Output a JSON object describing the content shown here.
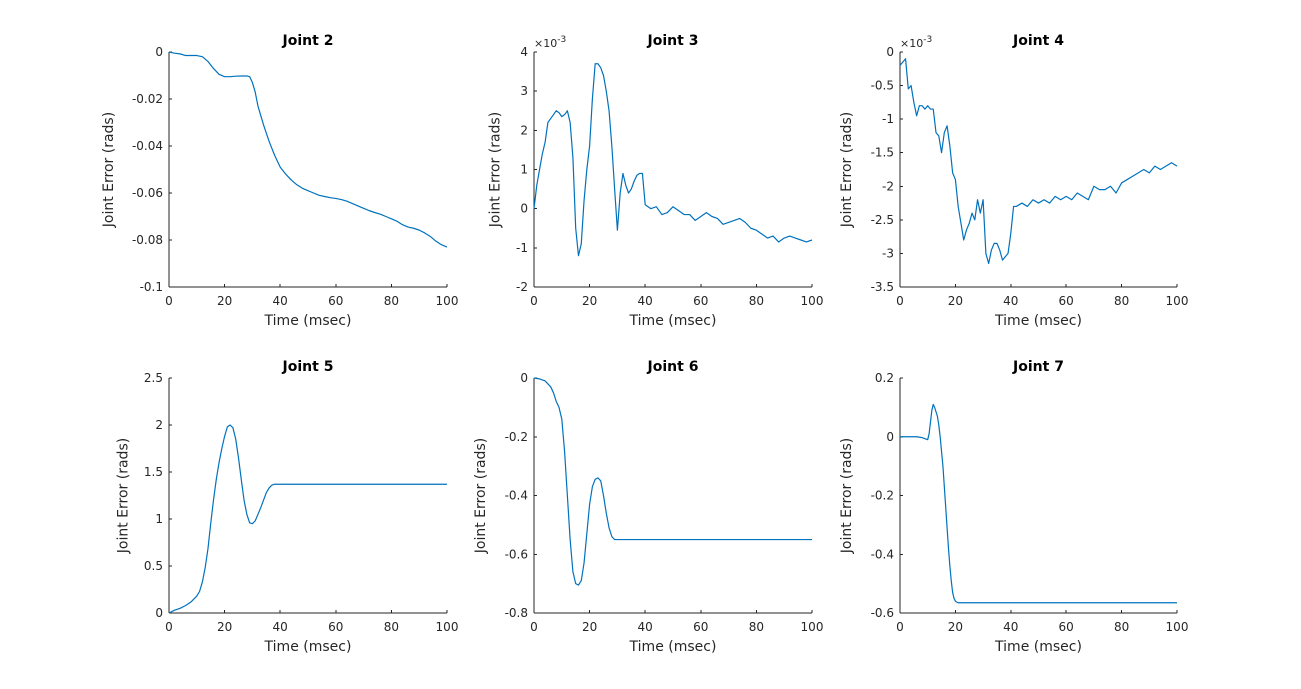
{
  "figure": {
    "line_color": "#0072BD",
    "background": "#ffffff"
  },
  "chart_data": [
    {
      "type": "line",
      "title": "Joint 2",
      "xlabel": "Time (msec)",
      "ylabel": "Joint Error (rads)",
      "xlim": [
        0,
        100
      ],
      "ylim": [
        -0.1,
        0
      ],
      "xticks": [
        0,
        20,
        40,
        60,
        80,
        100
      ],
      "xtick_labels": [
        "0",
        "20",
        "40",
        "60",
        "80",
        "100"
      ],
      "yticks": [
        -0.1,
        -0.08,
        -0.06,
        -0.04,
        -0.02,
        0
      ],
      "ytick_labels": [
        "-0.1",
        "-0.08",
        "-0.06",
        "-0.04",
        "-0.02",
        "0"
      ],
      "exponent_label": "",
      "series": [
        {
          "name": "Joint 2",
          "x": [
            0,
            2,
            4,
            6,
            8,
            10,
            12,
            14,
            16,
            18,
            20,
            22,
            24,
            26,
            28,
            29,
            30,
            31,
            32,
            34,
            36,
            38,
            40,
            42,
            44,
            46,
            48,
            50,
            52,
            54,
            56,
            58,
            60,
            62,
            64,
            66,
            68,
            70,
            72,
            74,
            76,
            78,
            80,
            82,
            84,
            86,
            88,
            90,
            92,
            94,
            96,
            98,
            100
          ],
          "y": [
            0,
            -0.0005,
            -0.0008,
            -0.0015,
            -0.0015,
            -0.0015,
            -0.002,
            -0.004,
            -0.007,
            -0.0095,
            -0.0105,
            -0.0105,
            -0.0103,
            -0.0102,
            -0.0102,
            -0.0105,
            -0.013,
            -0.017,
            -0.023,
            -0.031,
            -0.038,
            -0.044,
            -0.049,
            -0.052,
            -0.0545,
            -0.0565,
            -0.058,
            -0.059,
            -0.06,
            -0.061,
            -0.0615,
            -0.062,
            -0.0623,
            -0.0628,
            -0.0635,
            -0.0645,
            -0.0655,
            -0.0665,
            -0.0675,
            -0.0683,
            -0.069,
            -0.07,
            -0.071,
            -0.072,
            -0.0735,
            -0.0745,
            -0.075,
            -0.0758,
            -0.077,
            -0.0785,
            -0.0805,
            -0.082,
            -0.083
          ]
        }
      ]
    },
    {
      "type": "line",
      "title": "Joint 3",
      "xlabel": "Time (msec)",
      "ylabel": "Joint Error (rads)",
      "xlim": [
        0,
        100
      ],
      "ylim": [
        -2,
        4
      ],
      "xticks": [
        0,
        20,
        40,
        60,
        80,
        100
      ],
      "xtick_labels": [
        "0",
        "20",
        "40",
        "60",
        "80",
        "100"
      ],
      "yticks": [
        -2,
        -1,
        0,
        1,
        2,
        3,
        4
      ],
      "ytick_labels": [
        "-2",
        "-1",
        "0",
        "1",
        "2",
        "3",
        "4"
      ],
      "exponent_label": "×10",
      "exponent_power": "-3",
      "series": [
        {
          "name": "Joint 3",
          "x": [
            0,
            1,
            2,
            3,
            4,
            5,
            6,
            7,
            8,
            9,
            10,
            11,
            12,
            13,
            14,
            15,
            16,
            17,
            18,
            19,
            20,
            21,
            22,
            23,
            24,
            25,
            26,
            27,
            28,
            29,
            30,
            31,
            32,
            33,
            34,
            35,
            36,
            37,
            38,
            39,
            40,
            42,
            44,
            46,
            48,
            50,
            52,
            54,
            56,
            58,
            60,
            62,
            64,
            66,
            68,
            70,
            72,
            74,
            76,
            78,
            80,
            82,
            84,
            86,
            88,
            90,
            92,
            94,
            96,
            98,
            100
          ],
          "y": [
            0,
            0.6,
            1.0,
            1.4,
            1.7,
            2.2,
            2.3,
            2.4,
            2.5,
            2.45,
            2.35,
            2.4,
            2.5,
            2.2,
            1.3,
            -0.5,
            -1.2,
            -0.9,
            0.2,
            1.0,
            1.6,
            2.8,
            3.7,
            3.7,
            3.6,
            3.4,
            3.0,
            2.5,
            1.6,
            0.5,
            -0.55,
            0.4,
            0.9,
            0.6,
            0.4,
            0.5,
            0.7,
            0.85,
            0.9,
            0.9,
            0.1,
            0.0,
            0.05,
            -0.15,
            -0.1,
            0.05,
            -0.05,
            -0.15,
            -0.15,
            -0.3,
            -0.2,
            -0.1,
            -0.2,
            -0.25,
            -0.4,
            -0.35,
            -0.3,
            -0.25,
            -0.35,
            -0.5,
            -0.55,
            -0.65,
            -0.75,
            -0.7,
            -0.85,
            -0.75,
            -0.7,
            -0.75,
            -0.8,
            -0.85,
            -0.8
          ]
        }
      ]
    },
    {
      "type": "line",
      "title": "Joint 4",
      "xlabel": "Time (msec)",
      "ylabel": "Joint Error (rads)",
      "xlim": [
        0,
        100
      ],
      "ylim": [
        -3.5,
        0
      ],
      "xticks": [
        0,
        20,
        40,
        60,
        80,
        100
      ],
      "xtick_labels": [
        "0",
        "20",
        "40",
        "60",
        "80",
        "100"
      ],
      "yticks": [
        -3.5,
        -3,
        -2.5,
        -2,
        -1.5,
        -1,
        -0.5,
        0
      ],
      "ytick_labels": [
        "-3.5",
        "-3",
        "-2.5",
        "-2",
        "-1.5",
        "-1",
        "-0.5",
        "0"
      ],
      "exponent_label": "×10",
      "exponent_power": "-3",
      "series": [
        {
          "name": "Joint 4",
          "x": [
            0,
            1,
            2,
            3,
            4,
            5,
            6,
            7,
            8,
            9,
            10,
            11,
            12,
            13,
            14,
            15,
            16,
            17,
            18,
            19,
            20,
            21,
            22,
            23,
            24,
            25,
            26,
            27,
            28,
            29,
            30,
            31,
            32,
            33,
            34,
            35,
            36,
            37,
            38,
            39,
            40,
            41,
            42,
            44,
            46,
            48,
            50,
            52,
            54,
            56,
            58,
            60,
            62,
            64,
            66,
            68,
            70,
            72,
            74,
            76,
            78,
            80,
            82,
            84,
            86,
            88,
            90,
            92,
            94,
            96,
            98,
            100
          ],
          "y": [
            -0.2,
            -0.15,
            -0.1,
            -0.55,
            -0.5,
            -0.75,
            -0.95,
            -0.8,
            -0.8,
            -0.85,
            -0.8,
            -0.85,
            -0.85,
            -1.2,
            -1.25,
            -1.5,
            -1.2,
            -1.1,
            -1.4,
            -1.8,
            -1.9,
            -2.3,
            -2.55,
            -2.8,
            -2.65,
            -2.55,
            -2.4,
            -2.5,
            -2.2,
            -2.4,
            -2.2,
            -3.0,
            -3.15,
            -2.95,
            -2.85,
            -2.85,
            -2.95,
            -3.1,
            -3.05,
            -3.0,
            -2.7,
            -2.3,
            -2.3,
            -2.25,
            -2.3,
            -2.2,
            -2.25,
            -2.2,
            -2.25,
            -2.15,
            -2.2,
            -2.15,
            -2.2,
            -2.1,
            -2.15,
            -2.2,
            -2.0,
            -2.05,
            -2.05,
            -2.0,
            -2.1,
            -1.95,
            -1.9,
            -1.85,
            -1.8,
            -1.75,
            -1.8,
            -1.7,
            -1.75,
            -1.7,
            -1.65,
            -1.7
          ]
        }
      ]
    },
    {
      "type": "line",
      "title": "Joint 5",
      "xlabel": "Time (msec)",
      "ylabel": "Joint Error (rads)",
      "xlim": [
        0,
        100
      ],
      "ylim": [
        0,
        2.5
      ],
      "xticks": [
        0,
        20,
        40,
        60,
        80,
        100
      ],
      "xtick_labels": [
        "0",
        "20",
        "40",
        "60",
        "80",
        "100"
      ],
      "yticks": [
        0,
        0.5,
        1,
        1.5,
        2,
        2.5
      ],
      "ytick_labels": [
        "0",
        "0.5",
        "1",
        "1.5",
        "2",
        "2.5"
      ],
      "exponent_label": "",
      "series": [
        {
          "name": "Joint 5",
          "x": [
            0,
            2,
            4,
            6,
            8,
            10,
            11,
            12,
            13,
            14,
            15,
            16,
            17,
            18,
            19,
            20,
            21,
            22,
            23,
            24,
            25,
            26,
            27,
            28,
            29,
            30,
            31,
            32,
            33,
            34,
            35,
            36,
            37,
            38,
            39,
            40,
            50,
            60,
            70,
            80,
            90,
            100
          ],
          "y": [
            0,
            0.03,
            0.05,
            0.08,
            0.12,
            0.18,
            0.23,
            0.33,
            0.48,
            0.68,
            0.95,
            1.2,
            1.42,
            1.6,
            1.75,
            1.88,
            1.98,
            2.0,
            1.97,
            1.85,
            1.65,
            1.42,
            1.2,
            1.05,
            0.96,
            0.95,
            0.98,
            1.05,
            1.12,
            1.2,
            1.28,
            1.33,
            1.36,
            1.37,
            1.37,
            1.37,
            1.37,
            1.37,
            1.37,
            1.37,
            1.37,
            1.37
          ]
        }
      ]
    },
    {
      "type": "line",
      "title": "Joint 6",
      "xlabel": "Time (msec)",
      "ylabel": "Joint Error (rads)",
      "xlim": [
        0,
        100
      ],
      "ylim": [
        -0.8,
        0
      ],
      "xticks": [
        0,
        20,
        40,
        60,
        80,
        100
      ],
      "xtick_labels": [
        "0",
        "20",
        "40",
        "60",
        "80",
        "100"
      ],
      "yticks": [
        -0.8,
        -0.6,
        -0.4,
        -0.2,
        0
      ],
      "ytick_labels": [
        "-0.8",
        "-0.6",
        "-0.4",
        "-0.2",
        "0"
      ],
      "exponent_label": "",
      "series": [
        {
          "name": "Joint 6",
          "x": [
            0,
            2,
            4,
            6,
            7,
            8,
            9,
            10,
            11,
            12,
            13,
            14,
            15,
            16,
            17,
            18,
            19,
            20,
            21,
            22,
            23,
            24,
            25,
            26,
            27,
            28,
            29,
            30,
            31,
            32,
            33,
            40,
            50,
            60,
            70,
            80,
            90,
            100
          ],
          "y": [
            0,
            -0.003,
            -0.01,
            -0.03,
            -0.05,
            -0.08,
            -0.1,
            -0.14,
            -0.25,
            -0.4,
            -0.55,
            -0.66,
            -0.7,
            -0.705,
            -0.69,
            -0.63,
            -0.53,
            -0.43,
            -0.37,
            -0.345,
            -0.34,
            -0.35,
            -0.4,
            -0.46,
            -0.51,
            -0.54,
            -0.55,
            -0.55,
            -0.55,
            -0.55,
            -0.55,
            -0.55,
            -0.55,
            -0.55,
            -0.55,
            -0.55,
            -0.55,
            -0.55
          ]
        }
      ]
    },
    {
      "type": "line",
      "title": "Joint 7",
      "xlabel": "Time (msec)",
      "ylabel": "Joint Error (rads)",
      "xlim": [
        0,
        100
      ],
      "ylim": [
        -0.6,
        0.2
      ],
      "xticks": [
        0,
        20,
        40,
        60,
        80,
        100
      ],
      "xtick_labels": [
        "0",
        "20",
        "40",
        "60",
        "80",
        "100"
      ],
      "yticks": [
        -0.6,
        -0.4,
        -0.2,
        0,
        0.2
      ],
      "ytick_labels": [
        "-0.6",
        "-0.4",
        "-0.2",
        "0",
        "0.2"
      ],
      "exponent_label": "",
      "series": [
        {
          "name": "Joint 7",
          "x": [
            0,
            2,
            4,
            6,
            8,
            10,
            10.5,
            11,
            11.5,
            12,
            12.5,
            13,
            13.5,
            14,
            14.5,
            15,
            15.5,
            16,
            16.5,
            17,
            17.5,
            18,
            18.5,
            19,
            19.5,
            20,
            20.5,
            21,
            22,
            30,
            40,
            50,
            60,
            70,
            80,
            90,
            100
          ],
          "y": [
            0,
            0,
            0,
            0,
            -0.003,
            -0.01,
            0.01,
            0.05,
            0.09,
            0.11,
            0.1,
            0.085,
            0.07,
            0.04,
            0.0,
            -0.05,
            -0.1,
            -0.17,
            -0.24,
            -0.31,
            -0.38,
            -0.44,
            -0.49,
            -0.53,
            -0.55,
            -0.56,
            -0.563,
            -0.565,
            -0.565,
            -0.565,
            -0.565,
            -0.565,
            -0.565,
            -0.565,
            -0.565,
            -0.565,
            -0.565
          ]
        }
      ]
    }
  ]
}
